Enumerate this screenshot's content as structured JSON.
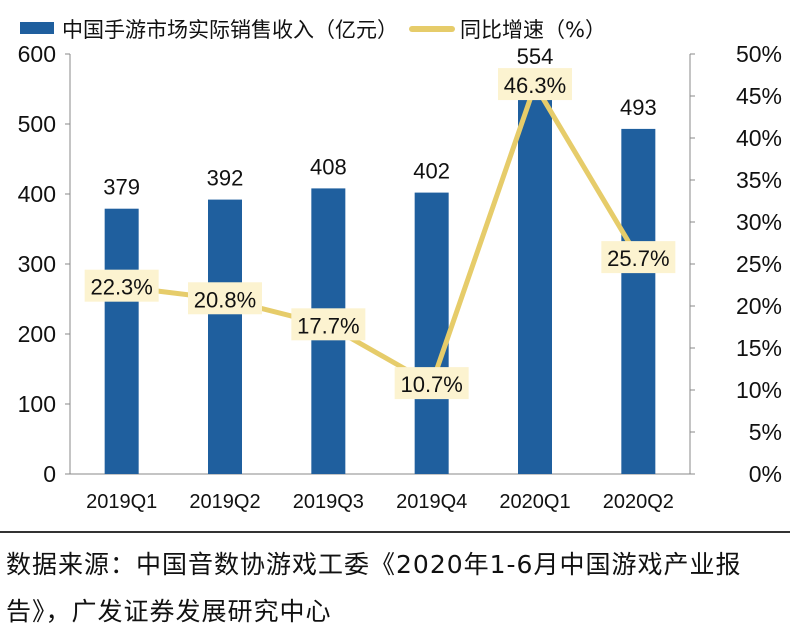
{
  "chart_data": {
    "type": "bar+line",
    "categories": [
      "2019Q1",
      "2019Q2",
      "2019Q3",
      "2019Q4",
      "2020Q1",
      "2020Q2"
    ],
    "series": [
      {
        "name": "中国手游市场实际销售收入（亿元）",
        "type": "bar",
        "axis": "left",
        "values": [
          379,
          392,
          408,
          402,
          554,
          493
        ],
        "labels": [
          "379",
          "392",
          "408",
          "402",
          "554",
          "493"
        ],
        "color": "#1f5f9e"
      },
      {
        "name": "同比增速（%）",
        "type": "line",
        "axis": "right",
        "values": [
          22.3,
          20.8,
          17.7,
          10.7,
          46.3,
          25.7
        ],
        "labels": [
          "22.3%",
          "20.8%",
          "17.7%",
          "10.7%",
          "46.3%",
          "25.7%"
        ],
        "color": "#e6cc6a"
      }
    ],
    "left_axis": {
      "ylim": [
        0,
        600
      ],
      "ticks": [
        "0",
        "100",
        "200",
        "300",
        "400",
        "500",
        "600"
      ]
    },
    "right_axis": {
      "ylim": [
        0,
        50
      ],
      "ticks": [
        "0%",
        "5%",
        "10%",
        "15%",
        "20%",
        "25%",
        "30%",
        "35%",
        "40%",
        "45%",
        "50%"
      ]
    },
    "legend_placement": "top",
    "grid": false
  },
  "source": {
    "line1": "数据来源：中国音数协游戏工委《2020年1-6月中国游戏产业报",
    "line2": "告》，广发证券发展研究中心"
  }
}
